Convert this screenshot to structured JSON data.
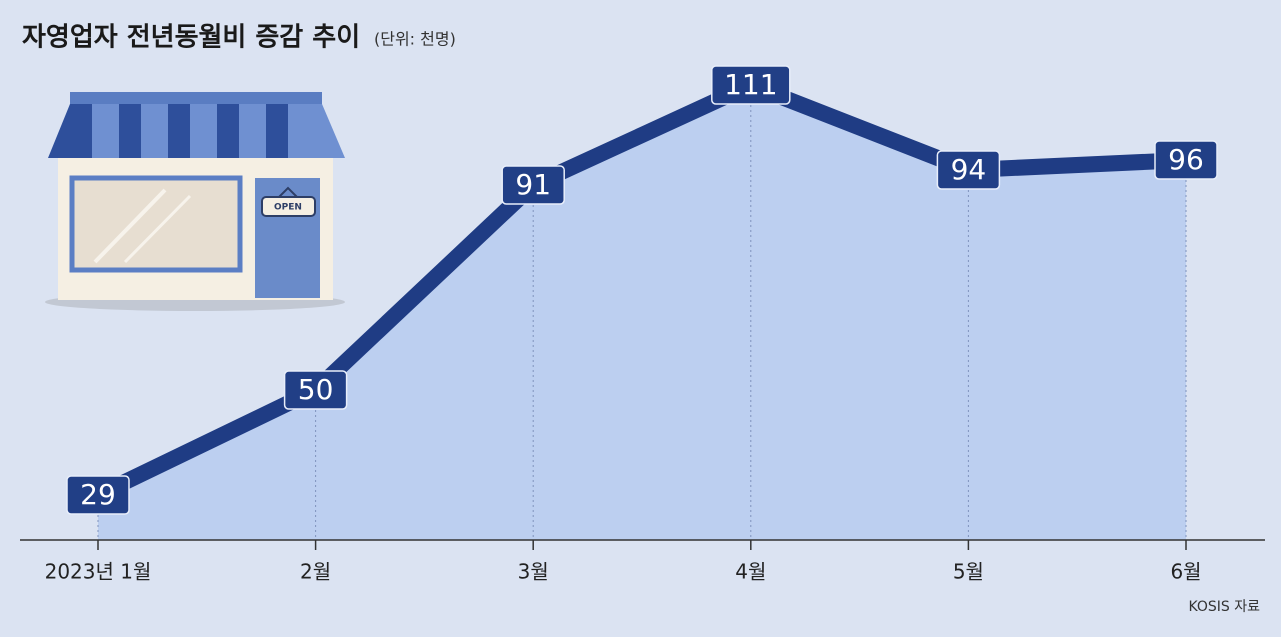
{
  "chart_data": {
    "type": "line",
    "title": "자영업자 전년동월비 증감 추이",
    "subtitle": "(단위: 천명)",
    "source": "KOSIS 자료",
    "illustration_label": "OPEN",
    "categories": [
      "2023년 1월",
      "2월",
      "3월",
      "4월",
      "5월",
      "6월"
    ],
    "values": [
      29,
      50,
      91,
      111,
      94,
      96
    ],
    "color": "#1f3c84",
    "area_color": "#bccff0",
    "ylim": [
      20,
      120
    ],
    "grid": false
  }
}
